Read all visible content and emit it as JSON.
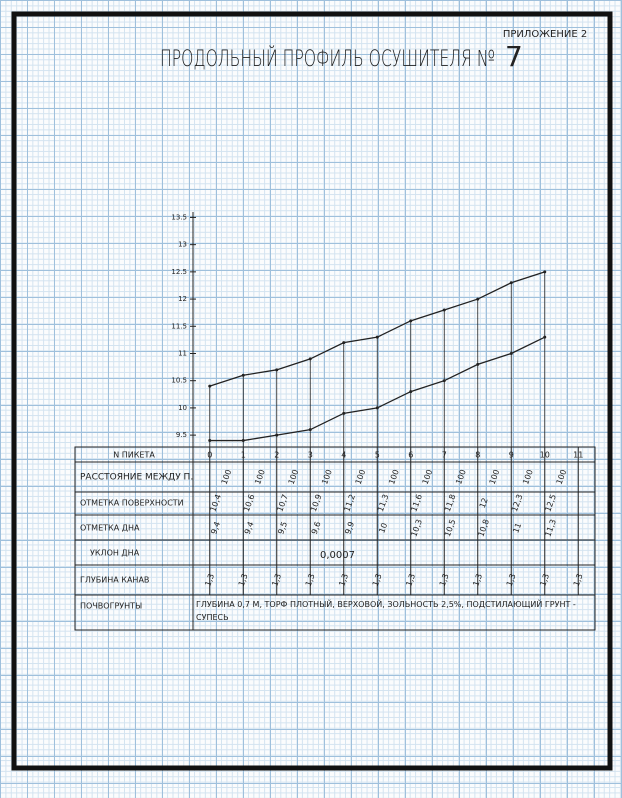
{
  "header": {
    "appendix": "ПРИЛОЖЕНИЕ 2",
    "title": "ПРОДОЛЬНЫЙ ПРОФИЛЬ ОСУШИТЕЛЯ №",
    "number": "7"
  },
  "chart_data": {
    "type": "line",
    "x": [
      0,
      1,
      2,
      3,
      4,
      5,
      6,
      7,
      8,
      9,
      10
    ],
    "series": [
      {
        "name": "ОТМЕТКА ПОВЕРХНОСТИ",
        "color": "#222222",
        "values": [
          10.4,
          10.6,
          10.7,
          10.9,
          11.2,
          11.3,
          11.6,
          11.8,
          12,
          12.3,
          12.5
        ],
        "value_labels": [
          "10,4",
          "10,6",
          "10,7",
          "10,9",
          "11,2",
          "11,3",
          "11,6",
          "11,8",
          "12",
          "12,3",
          "12,5"
        ]
      },
      {
        "name": "ОТМЕТКА ДНА",
        "color": "#222222",
        "values": [
          9.4,
          9.4,
          9.5,
          9.6,
          9.9,
          10,
          10.3,
          10.5,
          10.8,
          11,
          11.3
        ],
        "value_labels": [
          "9,4",
          "9,4",
          "9,5",
          "9,6",
          "9,9",
          "10",
          "10,3",
          "10,5",
          "10,8",
          "11",
          "11,3"
        ]
      }
    ],
    "xlim": [
      -0.5,
      11.5
    ],
    "xticks": [
      0,
      1,
      2,
      3,
      4,
      5,
      6,
      7,
      8,
      9,
      10,
      11
    ],
    "ylim": [
      9.3,
      13.6
    ],
    "yticks": [
      9.5,
      10,
      10.5,
      11,
      11.5,
      12,
      12.5,
      13,
      13.5
    ]
  },
  "table": {
    "picket_label": "N ПИКЕТА",
    "distance_label": "РАССТОЯНИЕ МЕЖДУ П.",
    "distances": [
      100,
      100,
      100,
      100,
      100,
      100,
      100,
      100,
      100,
      100,
      100
    ],
    "slope_label": "УКЛОН ДНА",
    "slope": "0,0007",
    "depth_label": "ГЛУБИНА КАНАВ",
    "depths": [
      "1,3",
      "1,3",
      "1,3",
      "1,3",
      "1,3",
      "1,3",
      "1,3",
      "1,3",
      "1,3",
      "1,3",
      "1,3",
      "1,3"
    ],
    "soil_label": "ПОЧВОГРУНТЫ",
    "soil": "ГЛУБИНА 0,7 М, ТОРФ ПЛОТНЫЙ, ВЕРХОВОЙ, ЗОЛЬНОСТЬ 2,5%, ПОДСТИЛАЮЩИЙ ГРУНТ - СУПЕСЬ"
  }
}
